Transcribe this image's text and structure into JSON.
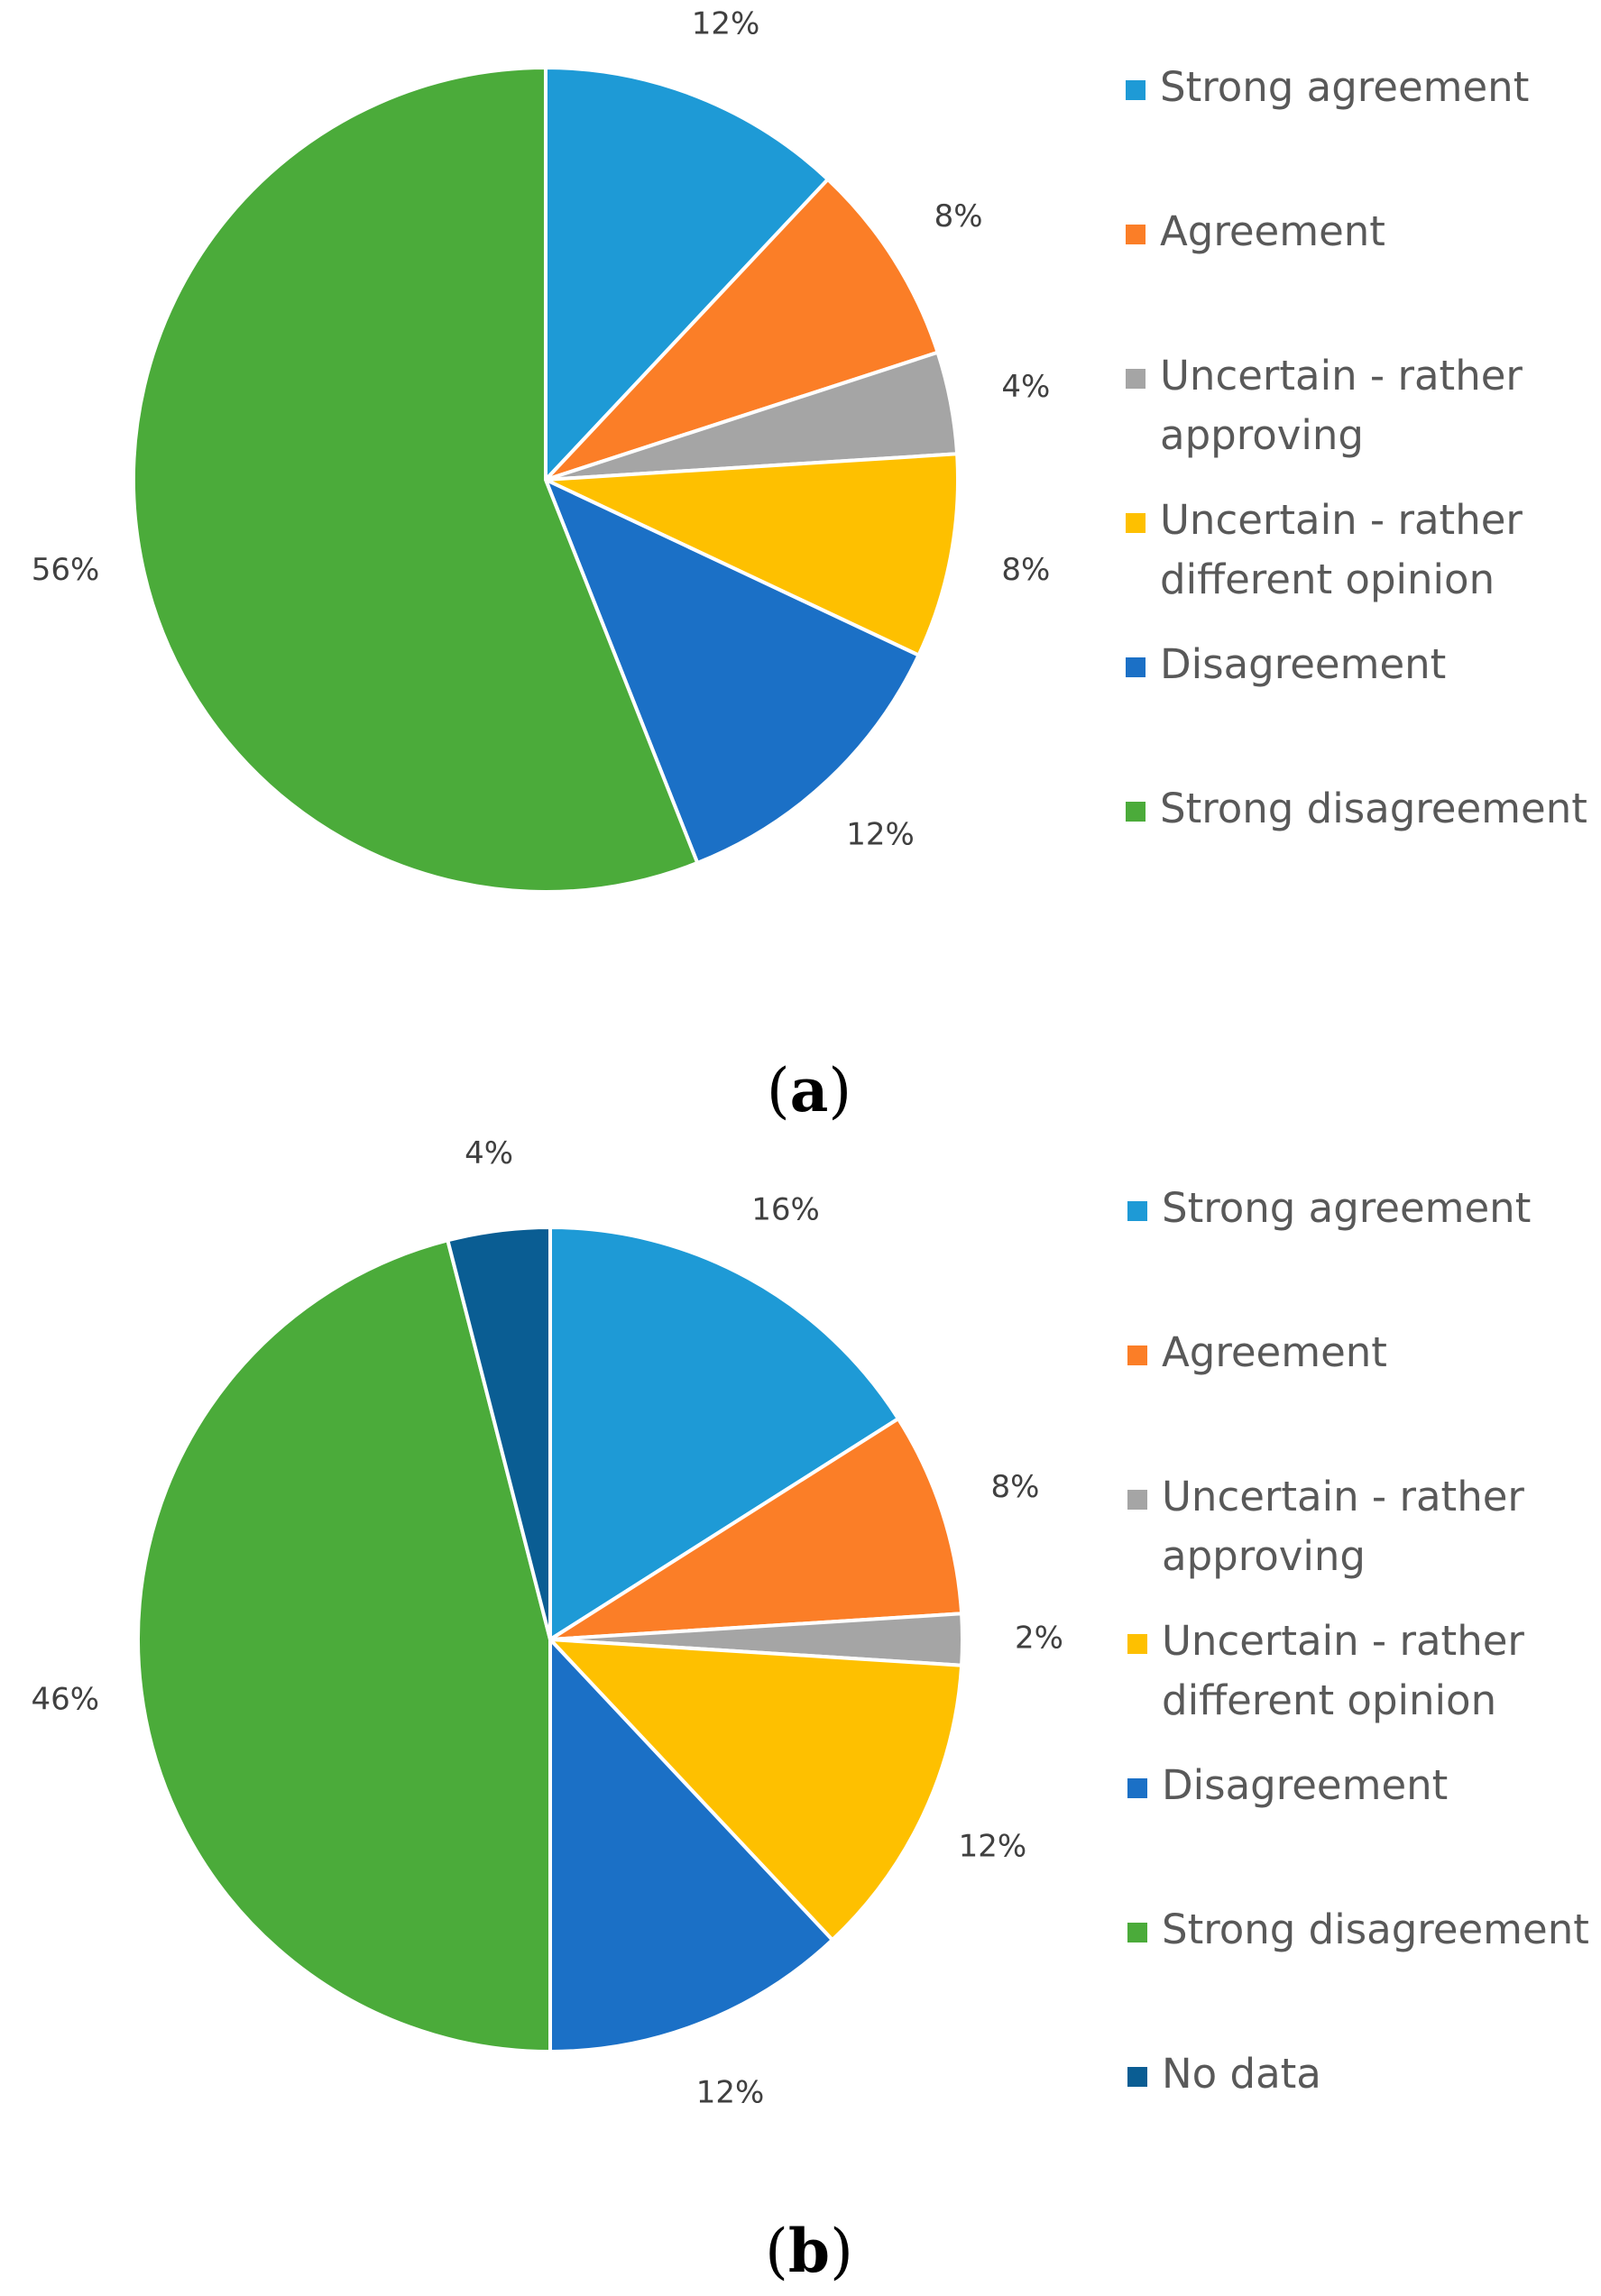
{
  "chart_data": [
    {
      "type": "pie",
      "panel": "a",
      "caption": "a",
      "start_angle_deg": 0,
      "direction": "clockwise",
      "categories": [
        "Strong agreement",
        "Agreement",
        "Uncertain - rather approving",
        "Uncertain - rather different opinion",
        "Disagreement",
        "Strong disagreement"
      ],
      "legend_lines": [
        [
          "Strong agreement"
        ],
        [
          "Agreement"
        ],
        [
          "Uncertain - rather",
          "approving"
        ],
        [
          "Uncertain - rather",
          "different opinion"
        ],
        [
          "Disagreement"
        ],
        [
          "Strong disagreement"
        ]
      ],
      "values": [
        12,
        8,
        4,
        8,
        12,
        56
      ],
      "data_labels": [
        "12%",
        "8%",
        "4%",
        "8%",
        "12%",
        "56%"
      ],
      "colors": [
        "#1e9ad6",
        "#fb7e27",
        "#a5a5a5",
        "#fec000",
        "#1b70c6",
        "#4bab3a"
      ],
      "legend_position": "right"
    },
    {
      "type": "pie",
      "panel": "b",
      "caption": "b",
      "start_angle_deg": 0,
      "direction": "clockwise",
      "categories": [
        "Strong agreement",
        "Agreement",
        "Uncertain - rather approving",
        "Uncertain - rather different opinion",
        "Disagreement",
        "Strong disagreement",
        "No data"
      ],
      "legend_lines": [
        [
          "Strong agreement"
        ],
        [
          "Agreement"
        ],
        [
          "Uncertain - rather",
          "approving"
        ],
        [
          "Uncertain - rather",
          "different opinion"
        ],
        [
          "Disagreement"
        ],
        [
          "Strong disagreement"
        ],
        [
          "No data"
        ]
      ],
      "values": [
        16,
        8,
        2,
        12,
        12,
        46,
        4
      ],
      "data_labels": [
        "16%",
        "8%",
        "2%",
        "12%",
        "12%",
        "46%",
        "4%"
      ],
      "colors": [
        "#1e9ad6",
        "#fb7e27",
        "#a5a5a5",
        "#fec000",
        "#1b70c6",
        "#4bab3a",
        "#0a5d93"
      ],
      "legend_position": "right"
    }
  ]
}
